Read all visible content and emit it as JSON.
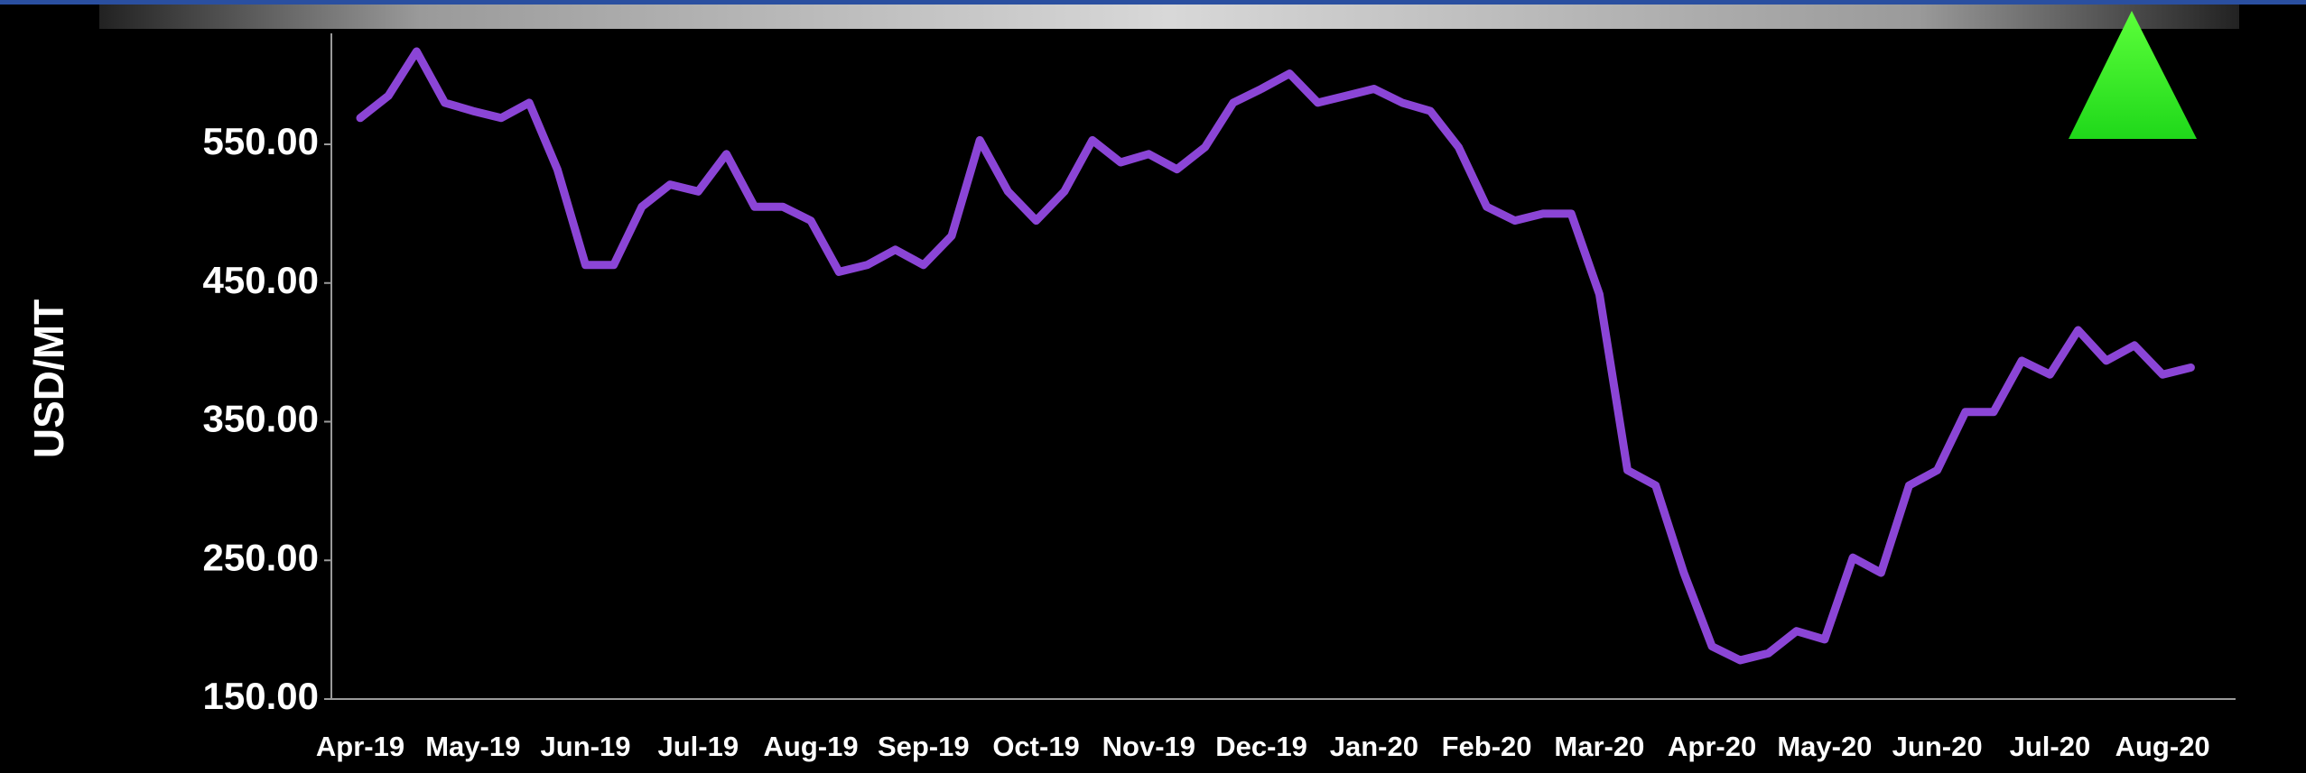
{
  "chart_data": {
    "type": "line",
    "ylabel": "USD/MT",
    "categories": [
      "Apr-19",
      null,
      null,
      null,
      "May-19",
      null,
      null,
      null,
      "Jun-19",
      null,
      null,
      null,
      "Jul-19",
      null,
      null,
      null,
      "Aug-19",
      null,
      null,
      null,
      "Sep-19",
      null,
      null,
      null,
      "Oct-19",
      null,
      null,
      null,
      "Nov-19",
      null,
      null,
      null,
      "Dec-19",
      null,
      null,
      null,
      "Jan-20",
      null,
      null,
      null,
      "Feb-20",
      null,
      null,
      null,
      "Mar-20",
      null,
      null,
      null,
      "Apr-20",
      null,
      null,
      null,
      "May-20",
      null,
      null,
      null,
      "Jun-20",
      null,
      null,
      null,
      "Jul-20",
      null,
      null,
      null,
      "Aug-20",
      null
    ],
    "series": [
      {
        "color": "#8b45d6",
        "values": [
          569,
          585,
          617,
          580,
          574,
          569,
          580,
          532,
          463,
          463,
          505,
          521,
          516,
          543,
          505,
          505,
          495,
          458,
          463,
          474,
          463,
          484,
          553,
          516,
          495,
          516,
          553,
          537,
          543,
          532,
          548,
          580,
          590,
          601,
          580,
          585,
          590,
          580,
          574,
          548,
          505,
          495,
          500,
          500,
          442,
          315,
          304,
          241,
          188,
          178,
          183,
          199,
          193,
          252,
          241,
          304,
          315,
          357,
          357,
          394,
          384,
          416,
          394,
          405,
          384,
          389
        ]
      }
    ],
    "ylim": [
      150,
      630
    ],
    "yticks": [
      {
        "value": 150,
        "label": "150.00"
      },
      {
        "value": 250,
        "label": "250.00"
      },
      {
        "value": 350,
        "label": "350.00"
      },
      {
        "value": 450,
        "label": "450.00"
      },
      {
        "value": 550,
        "label": "550.00"
      }
    ],
    "grid": false
  }
}
